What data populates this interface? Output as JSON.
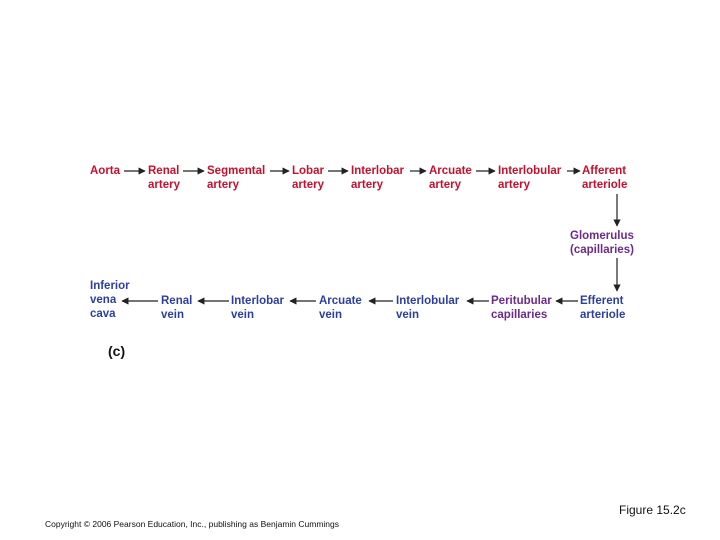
{
  "diagram": {
    "panel_label": "(c)",
    "nodes": {
      "aorta": "Aorta",
      "renal_artery": "Renal\nartery",
      "segmental_artery": "Segmental\nartery",
      "lobar_artery": "Lobar\nartery",
      "interlobar_artery": "Interlobar\nartery",
      "arcuate_artery": "Arcuate\nartery",
      "interlobular_artery": "Interlobular\nartery",
      "afferent_arteriole": "Afferent\narteriole",
      "glomerulus": "Glomerulus\n(capillaries)",
      "efferent_arteriole": "Efferent\narteriole",
      "peritubular_capillaries": "Peritubular\ncapillaries",
      "interlobular_vein": "Interlobular\nvein",
      "arcuate_vein": "Arcuate\nvein",
      "interlobar_vein": "Interlobar\nvein",
      "renal_vein": "Renal\nvein",
      "inferior_vena_cava": "Inferior\nvena\ncava"
    },
    "colors": {
      "artery": "#c8102e",
      "vein": "#2c3fa0",
      "capillary": "#6d2a8a",
      "arrow": "#222222"
    }
  },
  "footer": {
    "figure_label": "Figure 15.2c",
    "copyright": "Copyright © 2006 Pearson Education, Inc., publishing as Benjamin Cummings"
  }
}
